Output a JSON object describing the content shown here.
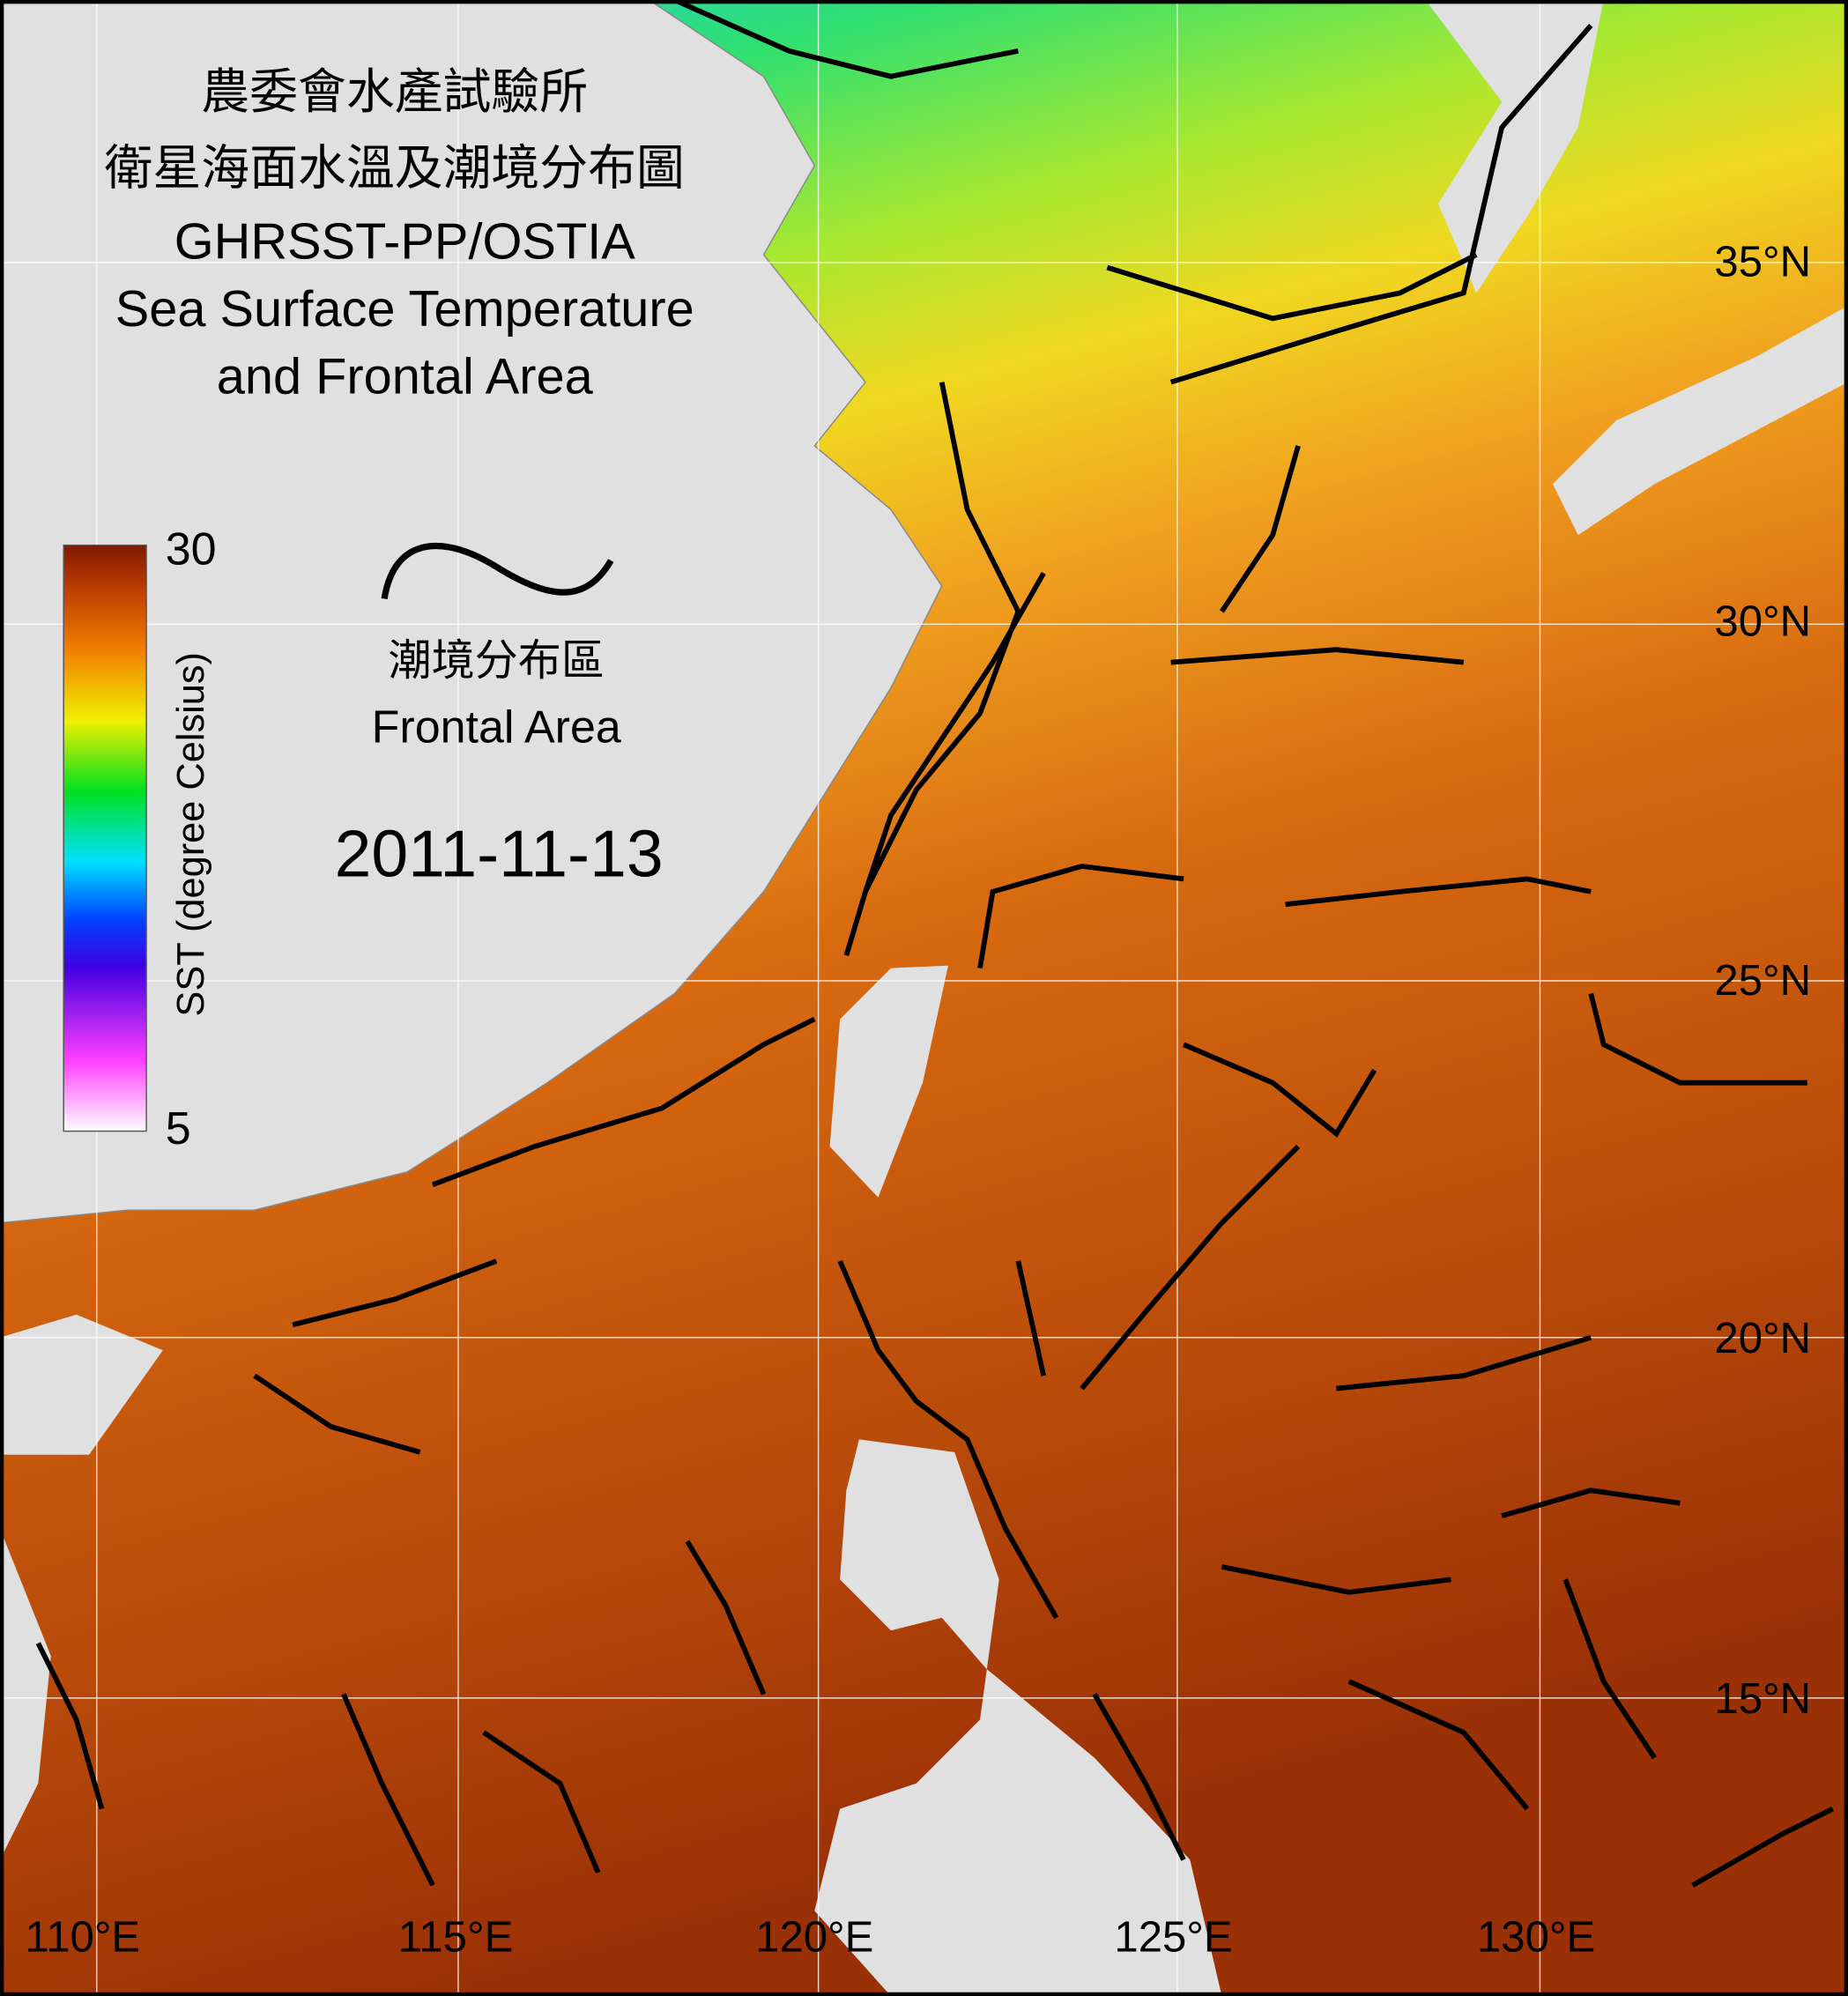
{
  "header": {
    "title_lines": [
      "農委會水產試驗所",
      "衛星海面水溫及潮境分布圖",
      "GHRSST-PP/OSTIA",
      "Sea Surface Temperature",
      "and Frontal Area"
    ]
  },
  "colorbar": {
    "label": "SST (degree Celsius)",
    "max": 30,
    "min": 5
  },
  "legend": {
    "label_zh": "潮境分布區",
    "label_en": "Frontal Area"
  },
  "date": "2011-11-13",
  "lat_labels": [
    "35°N",
    "30°N",
    "25°N",
    "20°N",
    "15°N"
  ],
  "lon_labels": [
    "110°E",
    "115°E",
    "120°E",
    "125°E",
    "130°E"
  ]
}
